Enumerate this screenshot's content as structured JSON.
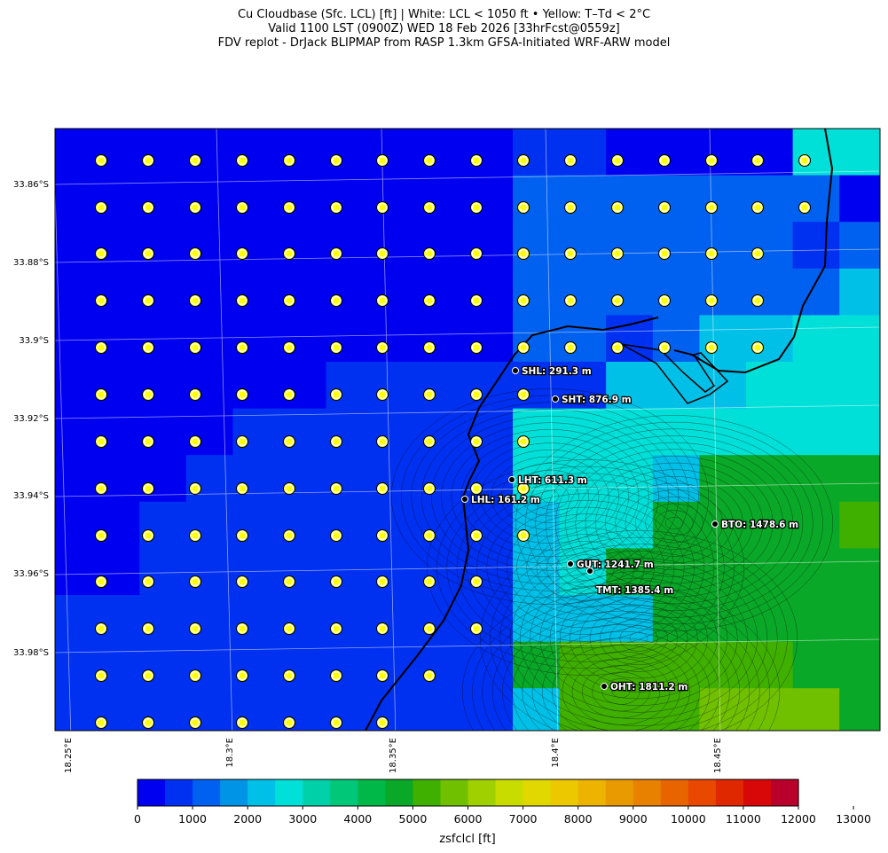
{
  "title": {
    "line1": "Cu Cloudbase (Sfc. LCL) [ft]  |  White: LCL < 1050 ft • Yellow: T–Td < 2°C",
    "line2": "Valid 1100 LST (0900Z) WED 18 Feb 2026 [33hrFcst@0559z]",
    "line3": "FDV replot - DrJack BLIPMAP from RASP 1.3km GFSA-Initiated WRF-ARW model"
  },
  "lat_labels": [
    "33.86°S",
    "33.88°S",
    "33.9°S",
    "33.92°S",
    "33.94°S",
    "33.96°S",
    "33.98°S"
  ],
  "lon_labels": [
    "18.25°E",
    "18.3°E",
    "18.35°E",
    "18.4°E",
    "18.45°E"
  ],
  "stations": [
    {
      "label": "SHL: 291.3 m"
    },
    {
      "label": "SHT: 876.9 m"
    },
    {
      "label": "LHT: 611.3 m"
    },
    {
      "label": "LHL: 161.2 m"
    },
    {
      "label": "BTO: 1478.6 m"
    },
    {
      "label": "GUT: 1241.7 m"
    },
    {
      "label": "TMT: 1385.4 m"
    },
    {
      "label": "OHT: 1811.2 m"
    }
  ],
  "colorbar": {
    "label": "zsfclcl [ft]",
    "ticks": [
      "0",
      "1000",
      "2000",
      "3000",
      "4000",
      "5000",
      "6000",
      "7000",
      "8000",
      "9000",
      "10000",
      "11000",
      "12000",
      "13000"
    ],
    "colors": [
      "#0000f0",
      "#0030f0",
      "#0060f0",
      "#0094e6",
      "#00c0e8",
      "#00e0d8",
      "#00d0a8",
      "#00c878",
      "#00b848",
      "#0aa828",
      "#40b000",
      "#70c000",
      "#a0d000",
      "#c8dc00",
      "#e0d800",
      "#ecc800",
      "#ecb400",
      "#e89a00",
      "#e88000",
      "#e86400",
      "#e84800",
      "#e02800",
      "#d80808",
      "#b8002a"
    ]
  },
  "map": {
    "marker_fill": "#ffff00",
    "marker_ring": "#ffffff",
    "coast_color": "#000000"
  }
}
